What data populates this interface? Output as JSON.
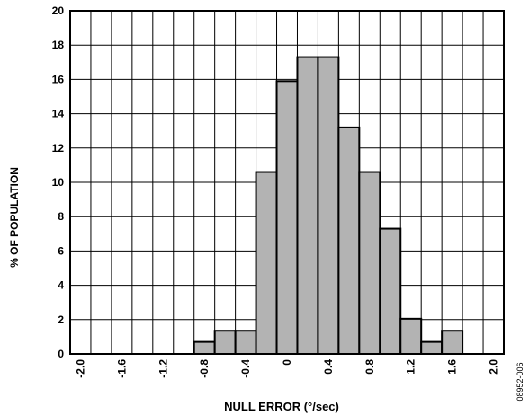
{
  "chart_data": {
    "type": "bar",
    "xlabel": "NULL ERROR (°/sec)",
    "ylabel": "% OF POPULATION",
    "code": "08952-006",
    "xlim": [
      -2.1,
      2.1
    ],
    "ylim": [
      0,
      20
    ],
    "xticks": [
      "-2.0",
      "-1.6",
      "-1.2",
      "-0.8",
      "-0.4",
      "0",
      "0.4",
      "0.8",
      "1.2",
      "1.6",
      "2.0"
    ],
    "yticks": [
      "0",
      "2",
      "4",
      "6",
      "8",
      "10",
      "12",
      "14",
      "16",
      "18",
      "20"
    ],
    "bin_width": 0.2,
    "bars": [
      {
        "x": -0.8,
        "value": 0.7
      },
      {
        "x": -0.6,
        "value": 1.35
      },
      {
        "x": -0.4,
        "value": 1.35
      },
      {
        "x": -0.2,
        "value": 10.6
      },
      {
        "x": 0.0,
        "value": 15.9
      },
      {
        "x": 0.2,
        "value": 17.3
      },
      {
        "x": 0.4,
        "value": 17.3
      },
      {
        "x": 0.6,
        "value": 13.2
      },
      {
        "x": 0.8,
        "value": 10.6
      },
      {
        "x": 1.0,
        "value": 7.3
      },
      {
        "x": 1.2,
        "value": 2.05
      },
      {
        "x": 1.4,
        "value": 0.7
      },
      {
        "x": 1.6,
        "value": 1.35
      }
    ],
    "grid": true,
    "bar_color": "#b3b3b3"
  }
}
